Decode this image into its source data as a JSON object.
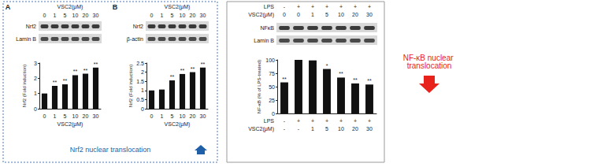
{
  "chart_data": [
    {
      "type": "bar",
      "title": "A",
      "blot": {
        "header": [
          {
            "label": "VSC2(μM)",
            "lanes": [
              "0",
              "1",
              "5",
              "10",
              "20",
              "30"
            ]
          }
        ],
        "rows": [
          "Nrf2",
          "Lamin B"
        ]
      },
      "categories": [
        "0",
        "1",
        "5",
        "10",
        "20",
        "30"
      ],
      "values": [
        1.0,
        1.5,
        1.6,
        2.2,
        2.3,
        2.7
      ],
      "significance": [
        null,
        "**",
        "**",
        "**",
        "**",
        "**"
      ],
      "xlabel": "VSC2(μM)",
      "ylabel": "Nrf2 (Fold induction)",
      "ylim": [
        0,
        3
      ],
      "yticks": [
        0,
        1,
        2,
        3
      ],
      "color": "#111111"
    },
    {
      "type": "bar",
      "title": "B",
      "blot": {
        "header": [
          {
            "label": "VSC2(μM)",
            "lanes": [
              "0",
              "1",
              "5",
              "10",
              "20",
              "30"
            ]
          }
        ],
        "rows": [
          "Nrf2",
          "β-actin"
        ]
      },
      "categories": [
        "0",
        "1",
        "5",
        "10",
        "20",
        "30"
      ],
      "values": [
        1.0,
        1.05,
        1.55,
        1.9,
        2.0,
        2.25
      ],
      "significance": [
        null,
        null,
        "**",
        "**",
        "**",
        "**"
      ],
      "xlabel": "VSC2(μM)",
      "ylabel": "Nrf2 (Fold induction)",
      "ylim": [
        0,
        2.5
      ],
      "yticks": [
        0,
        0.5,
        1,
        1.5,
        2,
        2.5
      ],
      "color": "#111111"
    },
    {
      "type": "bar",
      "blot": {
        "header": [
          {
            "label": "LPS",
            "lanes": [
              "-",
              "+",
              "+",
              "+",
              "+",
              "+",
              "+"
            ]
          },
          {
            "label": "VSC2(μM)",
            "lanes": [
              "0",
              "0",
              "1",
              "5",
              "10",
              "20",
              "30"
            ]
          }
        ],
        "rows": [
          "NFκB",
          "Lamin B"
        ]
      },
      "lps_label": "LPS",
      "lps": [
        "-",
        "+",
        "+",
        "+",
        "+",
        "+",
        "+"
      ],
      "categories": [
        "-",
        "-",
        "1",
        "5",
        "10",
        "20",
        "30"
      ],
      "values": [
        58,
        100,
        99,
        83,
        67,
        56,
        54
      ],
      "significance": [
        "**",
        null,
        null,
        "*",
        "**",
        "**",
        "**"
      ],
      "xlabel": "VSC2(μM)",
      "ylabel": "NF-κB (% of LPS-treated)",
      "ylim": [
        0,
        100
      ],
      "yticks": [
        0,
        25,
        50,
        75,
        100
      ],
      "color": "#111111"
    }
  ],
  "annotations": [
    {
      "text": "Nrf2 nuclear translocation",
      "color": "#1f5fa8"
    },
    {
      "text": "NF-κB nuclear translocation",
      "color": "#e8231c"
    }
  ]
}
